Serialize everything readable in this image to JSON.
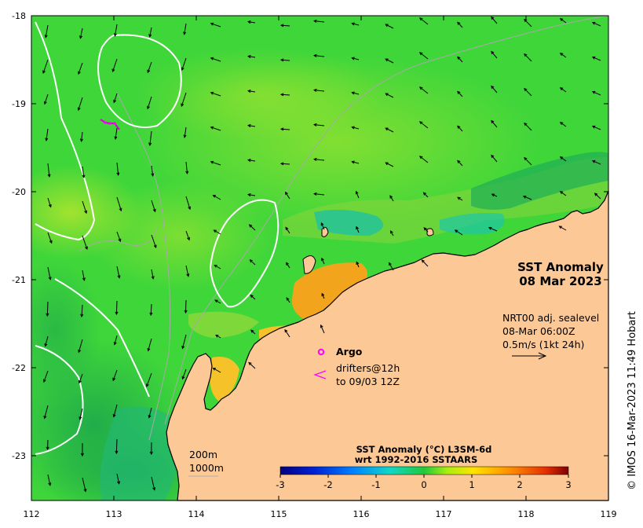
{
  "map": {
    "title_line1": "SST Anomaly",
    "title_line2": "08 Mar 2023",
    "lat_ticks": [
      "-18",
      "-19",
      "-20",
      "-21",
      "-22",
      "-23"
    ],
    "lon_ticks": [
      "112",
      "113",
      "114",
      "115",
      "116",
      "117",
      "118",
      "119"
    ],
    "sealevel": {
      "line1": "NRT00 adj. sealevel",
      "line2": "08-Mar 06:00Z",
      "line3": "0.5m/s (1kt 24h)"
    },
    "legend": {
      "argo_label": "Argo",
      "drifters_line1": "drifters@12h",
      "drifters_line2": "to 09/03 12Z",
      "argo_color": "#ff00ff"
    },
    "contours": {
      "label1": "200m",
      "label2": "1000m"
    },
    "colorbar": {
      "title_line1": "SST Anomaly (°C) L3SM-6d",
      "title_line2": "wrt 1992-2016 SSTAARS",
      "ticks": [
        "-3",
        "-2",
        "-1",
        "0",
        "1",
        "2",
        "3"
      ],
      "range": [
        -3,
        3
      ]
    },
    "credit": "© IMOS 16-Mar-2023 11:49 Hobart",
    "colors": {
      "land": "#fcc896",
      "ocean_base": "#3fd63a",
      "warm_anomaly": "#f2a51c",
      "cool_anomaly": "#26c9a6"
    }
  }
}
